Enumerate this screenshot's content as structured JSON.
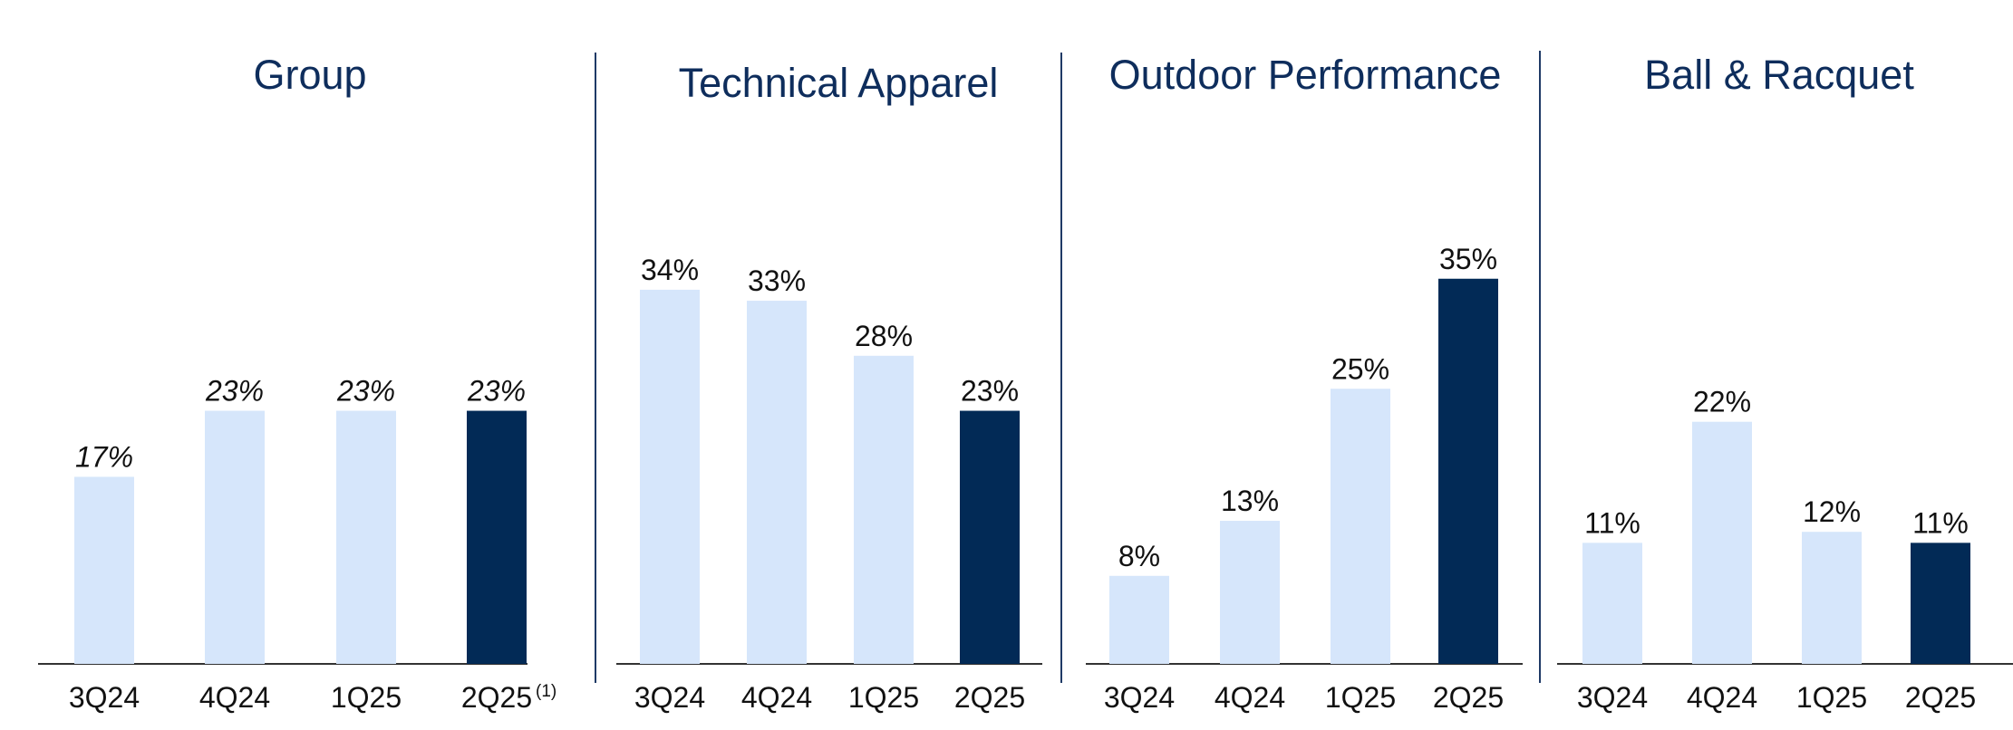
{
  "colors": {
    "title": "#0E2D5C",
    "bar_light": "#D6E6FB",
    "bar_dark": "#022A56",
    "label": "#111111",
    "axis": "#333333",
    "divider": "#1F3A66"
  },
  "chart_data": [
    {
      "type": "bar",
      "title": "Group",
      "categories": [
        "3Q24",
        "4Q24",
        "1Q25",
        "2Q25"
      ],
      "category_footnotes": [
        "",
        "",
        "",
        "(1)"
      ],
      "values": [
        17,
        23,
        23,
        23
      ],
      "value_labels": [
        "17%",
        "23%",
        "23%",
        "23%"
      ],
      "value_labels_italic": true,
      "highlight_index": 3,
      "ylim": [
        0,
        40
      ]
    },
    {
      "type": "bar",
      "title": "Technical Apparel",
      "categories": [
        "3Q24",
        "4Q24",
        "1Q25",
        "2Q25"
      ],
      "category_footnotes": [
        "",
        "",
        "",
        ""
      ],
      "values": [
        34,
        33,
        28,
        23
      ],
      "value_labels": [
        "34%",
        "33%",
        "28%",
        "23%"
      ],
      "value_labels_italic": false,
      "highlight_index": 3,
      "ylim": [
        0,
        40
      ]
    },
    {
      "type": "bar",
      "title": "Outdoor Performance",
      "categories": [
        "3Q24",
        "4Q24",
        "1Q25",
        "2Q25"
      ],
      "category_footnotes": [
        "",
        "",
        "",
        ""
      ],
      "values": [
        8,
        13,
        25,
        35
      ],
      "value_labels": [
        "8%",
        "13%",
        "25%",
        "35%"
      ],
      "value_labels_italic": false,
      "highlight_index": 3,
      "ylim": [
        0,
        40
      ]
    },
    {
      "type": "bar",
      "title": "Ball & Racquet",
      "categories": [
        "3Q24",
        "4Q24",
        "1Q25",
        "2Q25"
      ],
      "category_footnotes": [
        "",
        "",
        "",
        ""
      ],
      "values": [
        11,
        22,
        12,
        11
      ],
      "value_labels": [
        "11%",
        "22%",
        "12%",
        "11%"
      ],
      "value_labels_italic": false,
      "highlight_index": 3,
      "ylim": [
        0,
        40
      ]
    }
  ]
}
